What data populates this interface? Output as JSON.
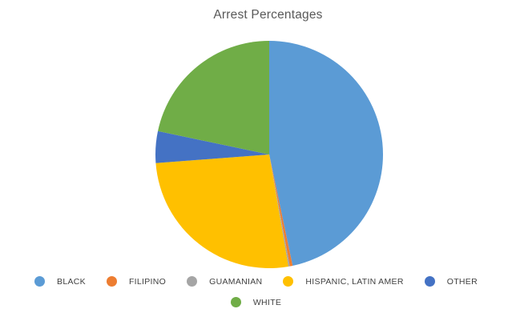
{
  "chart_data": {
    "type": "pie",
    "title": "Arrest Percentages",
    "title_color": "#595959",
    "categories": [
      "BLACK",
      "FILIPINO",
      "GUAMANIAN",
      "HISPANIC, LATIN AMER",
      "OTHER",
      "WHITE"
    ],
    "values": [
      46.7,
      0.4,
      0.2,
      26.5,
      4.5,
      21.7
    ],
    "unit": "percent",
    "colors": [
      "#5B9BD5",
      "#ED7D31",
      "#A5A5A5",
      "#FFC000",
      "#4472C4",
      "#70AD47"
    ],
    "start_angle_deg": 0,
    "direction": "clockwise",
    "grid": false,
    "legend_position": "bottom",
    "legend_text_color": "#404040",
    "legend_rows": [
      [
        "BLACK",
        "FILIPINO",
        "GUAMANIAN",
        "HISPANIC, LATIN AMER",
        "OTHER"
      ],
      [
        "WHITE"
      ]
    ]
  }
}
